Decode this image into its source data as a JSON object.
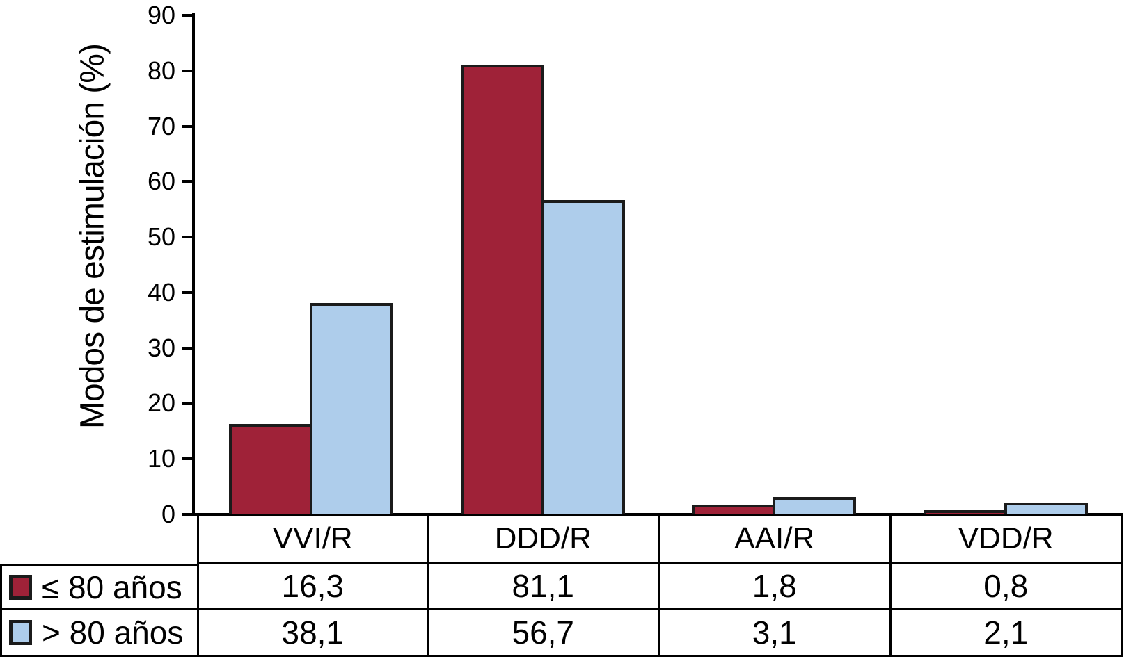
{
  "figure": {
    "background": "#ffffff",
    "axis_color": "#000000",
    "bar_border_color": "#1b1b1b"
  },
  "chart_data": {
    "type": "bar",
    "title": "",
    "xlabel": "",
    "ylabel": "Modos de estimulación (%)",
    "ylim": [
      0,
      90
    ],
    "yticks": [
      0,
      10,
      20,
      30,
      40,
      50,
      60,
      70,
      80,
      90
    ],
    "grid": false,
    "legend_position": "table-left",
    "categories": [
      "VVI/R",
      "DDD/R",
      "AAI/R",
      "VDD/R"
    ],
    "series": [
      {
        "name": "≤ 80 años",
        "color": "#9f2238",
        "values": [
          16.3,
          81.1,
          1.8,
          0.8
        ],
        "display_values": [
          "16,3",
          "81,1",
          "1,8",
          "0,8"
        ]
      },
      {
        "name": "> 80 años",
        "color": "#aecdeb",
        "values": [
          38.1,
          56.7,
          3.1,
          2.1
        ],
        "display_values": [
          "38,1",
          "56,7",
          "3,1",
          "2,1"
        ]
      }
    ]
  }
}
